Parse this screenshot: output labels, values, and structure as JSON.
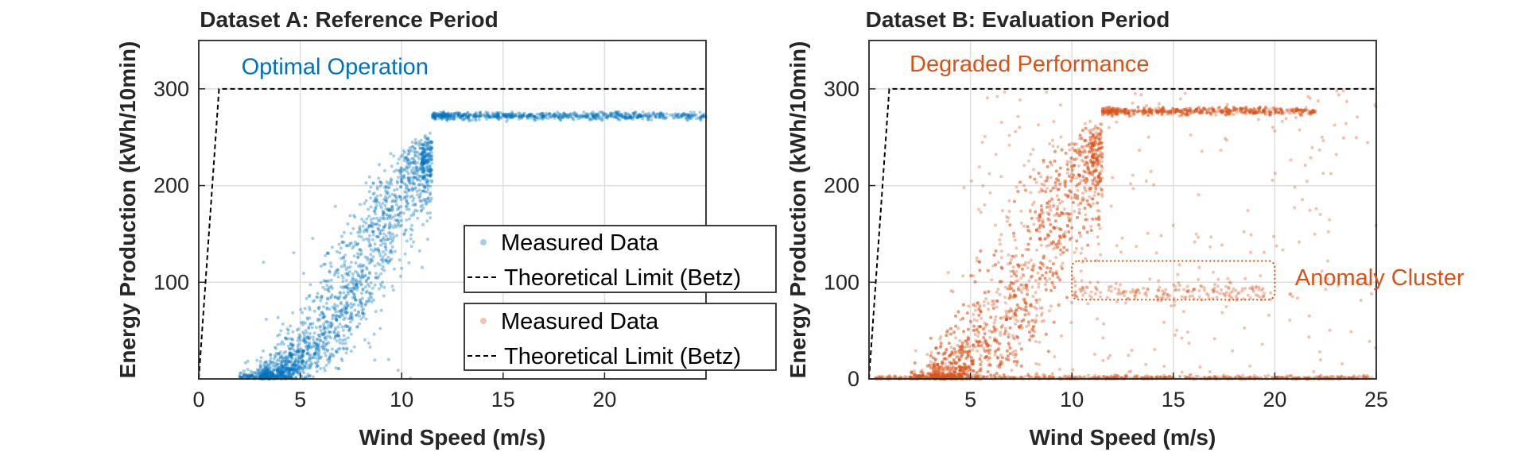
{
  "chart_data": [
    {
      "type": "scatter",
      "title": "Dataset A: Reference Period",
      "xlabel": "Wind Speed (m/s)",
      "ylabel": "Energy Production (kWh/10min)",
      "xlim": [
        0,
        25
      ],
      "ylim": [
        0,
        350
      ],
      "xticks": [
        0,
        5,
        10,
        15,
        20
      ],
      "yticks": [
        100,
        200,
        300
      ],
      "grid": true,
      "legend_placement": "center-right",
      "series": [
        {
          "name": "Measured Data",
          "kind": "scatter",
          "color": "#0072BD",
          "description_points": "approx. 3500 points along sigmoid power curve: cut-in ~2.5 m/s, steep rise 5-11 m/s, plateau ~272 kWh/10min from 11 to 25 m/s"
        },
        {
          "name": "Theoretical Limit (Betz)",
          "kind": "line",
          "style": "dashed",
          "color": "#000000",
          "x": [
            0,
            1,
            25
          ],
          "y": [
            0,
            300,
            300
          ]
        }
      ],
      "annotations": [
        {
          "text": "Optimal Operation",
          "x": 2.1,
          "y": 315,
          "color": "#0072BD"
        }
      ],
      "legends": [
        [
          "Measured Data",
          "Theoretical Limit (Betz)"
        ],
        [
          "Measured Data",
          "Theoretical Limit (Betz)"
        ]
      ]
    },
    {
      "type": "scatter",
      "title": "Dataset B: Evaluation Period",
      "xlabel": "Wind Speed (m/s)",
      "ylabel": "Energy Production (kWh/10min)",
      "xlim": [
        0,
        25
      ],
      "ylim": [
        0,
        350
      ],
      "xticks": [
        5,
        10,
        15,
        20,
        25
      ],
      "yticks": [
        0,
        100,
        200,
        300
      ],
      "grid": true,
      "series": [
        {
          "name": "Measured Data",
          "kind": "scatter",
          "color": "#D95319",
          "description_points": "approx. 3500 points: sigmoid curve with plateau ~277 kWh/10min, zero-output band at 0 across 0-25 m/s, anomaly cluster near 90 kWh/10min for 10-20 m/s, scattered outliers"
        },
        {
          "name": "Theoretical Limit (Betz)",
          "kind": "line",
          "style": "dashed",
          "color": "#000000",
          "x": [
            0,
            1,
            25
          ],
          "y": [
            0,
            300,
            300
          ]
        }
      ],
      "annotations": [
        {
          "text": "Degraded Performance",
          "x": 2,
          "y": 318,
          "color": "#D95319"
        },
        {
          "text": "Anomaly Cluster",
          "x": 21,
          "y": 97,
          "color": "#D95319"
        }
      ],
      "highlight_box": {
        "x": [
          10,
          20
        ],
        "y": [
          82,
          122
        ],
        "color": "#D95319",
        "style": "dotted"
      }
    }
  ]
}
